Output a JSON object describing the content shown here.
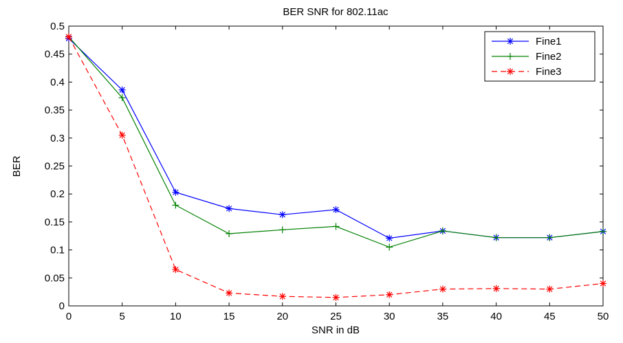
{
  "chart_data": {
    "type": "line",
    "title": "BER SNR for 802.11ac",
    "xlabel": "SNR in dB",
    "ylabel": "BER",
    "xlim": [
      0,
      50
    ],
    "ylim": [
      0,
      0.5
    ],
    "grid": true,
    "legend_position": "top-right",
    "x": [
      0,
      5,
      10,
      15,
      20,
      25,
      30,
      35,
      40,
      45,
      50
    ],
    "xticks": [
      "0",
      "5",
      "10",
      "15",
      "20",
      "25",
      "30",
      "35",
      "40",
      "45",
      "50"
    ],
    "yticks": [
      "0",
      "0.05",
      "0.1",
      "0.15",
      "0.2",
      "0.25",
      "0.3",
      "0.35",
      "0.4",
      "0.45",
      "0.5"
    ],
    "series": [
      {
        "name": "Fine1",
        "color": "#0000ff",
        "marker": "asterisk",
        "dash": "solid",
        "values": [
          0.478,
          0.386,
          0.203,
          0.174,
          0.163,
          0.172,
          0.121,
          0.134,
          0.122,
          0.122,
          0.133
        ]
      },
      {
        "name": "Fine2",
        "color": "#008000",
        "marker": "plus",
        "dash": "solid",
        "values": [
          0.481,
          0.372,
          0.18,
          0.129,
          0.136,
          0.142,
          0.105,
          0.134,
          0.122,
          0.122,
          0.133
        ]
      },
      {
        "name": "Fine3",
        "color": "#ff0000",
        "marker": "asterisk",
        "dash": "dashed",
        "values": [
          0.481,
          0.305,
          0.065,
          0.023,
          0.017,
          0.015,
          0.02,
          0.03,
          0.031,
          0.03,
          0.04
        ]
      }
    ]
  }
}
